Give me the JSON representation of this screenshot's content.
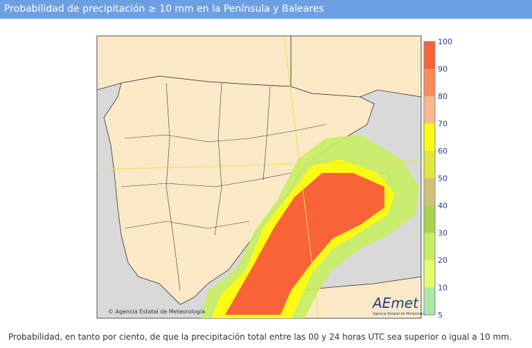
{
  "header": {
    "title": "Probabilidad de precipitación ≥ 10 mm en la Península y Baleares"
  },
  "legend": {
    "ticks": [
      100,
      90,
      80,
      70,
      60,
      50,
      40,
      30,
      20,
      10,
      5
    ],
    "colors": [
      "#fa6337",
      "#fb8c5c",
      "#fcb690",
      "#fdfb14",
      "#e2e63e",
      "#cfc37a",
      "#a8d44c",
      "#c6ee62",
      "#e4fb6a",
      "#a9e9a4"
    ]
  },
  "map": {
    "credit": "© Agencia Estatal de Meteorología",
    "logo": "AEmet",
    "logo_subtitle": "Agencia Estatal de Meteorología"
  },
  "caption": "Probabilidad, en tanto por ciento, de que la precipitación total entre las 00 y 24 horas UTC sea superior o igual a 10 mm."
}
